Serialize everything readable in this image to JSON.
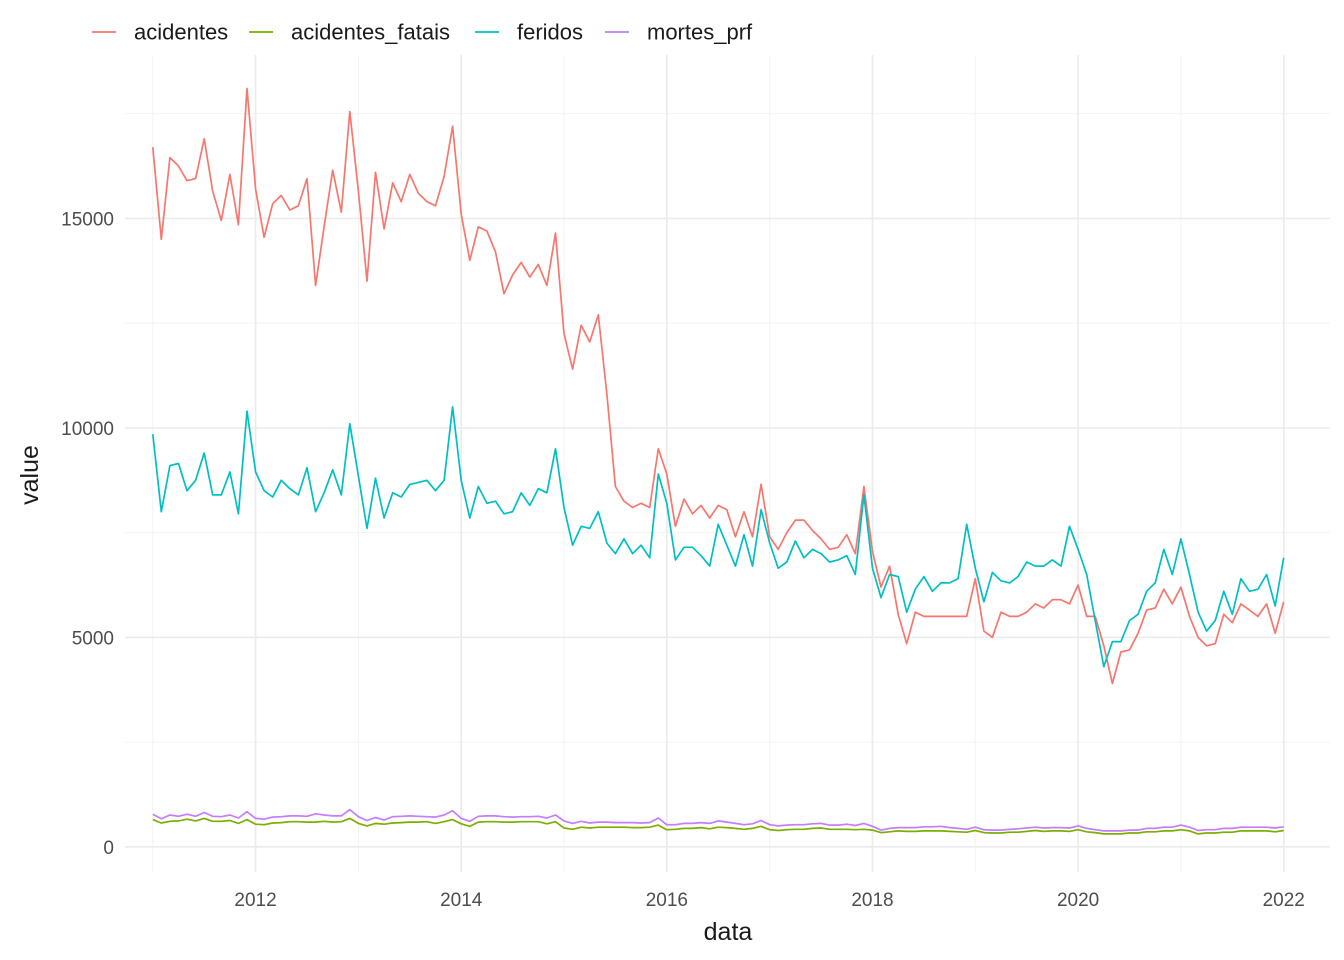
{
  "chart_data": {
    "type": "line",
    "xlabel": "data",
    "ylabel": "value",
    "x_tick_labels": [
      "2012",
      "2014",
      "2016",
      "2018",
      "2020",
      "2022"
    ],
    "y_tick_labels": [
      "0",
      "5000",
      "10000",
      "15000"
    ],
    "x_range_years": [
      2010.73,
      2022.45
    ],
    "ylim": [
      -600,
      18900
    ],
    "legend_position": "top-left",
    "grid": true,
    "start": "2011-01",
    "frequency": "monthly",
    "series": [
      {
        "name": "acidentes",
        "color": "#F8766D",
        "values": [
          16700,
          14500,
          16450,
          16250,
          15900,
          15950,
          16900,
          15650,
          14950,
          16050,
          14850,
          18100,
          15700,
          14550,
          15350,
          15550,
          15200,
          15300,
          15950,
          13400,
          14800,
          16150,
          15150,
          17550,
          15650,
          13500,
          16100,
          14750,
          15850,
          15400,
          16050,
          15600,
          15400,
          15300,
          16000,
          17200,
          15100,
          14000,
          14800,
          14700,
          14200,
          13200,
          13650,
          13950,
          13600,
          13900,
          13400,
          14650,
          12250,
          11400,
          12450,
          12050,
          12700,
          10800,
          8600,
          8250,
          8100,
          8200,
          8100,
          9500,
          8900,
          7650,
          8300,
          7950,
          8150,
          7850,
          8150,
          8050,
          7400,
          8000,
          7400,
          8650,
          7400,
          7100,
          7500,
          7800,
          7800,
          7550,
          7350,
          7100,
          7150,
          7450,
          7000,
          8600,
          7050,
          6200,
          6700,
          5550,
          4850,
          5600,
          5500,
          5500,
          5500,
          5500,
          5500,
          5500,
          6400,
          5150,
          5000,
          5600,
          5500,
          5500,
          5600,
          5800,
          5700,
          5900,
          5900,
          5800,
          6250,
          5500,
          5500,
          4800,
          3900,
          4650,
          4700,
          5100,
          5650,
          5700,
          6150,
          5800,
          6200,
          5500,
          5000,
          4800,
          4850,
          5550,
          5350,
          5800,
          5650,
          5500,
          5800,
          5100,
          5850
        ]
      },
      {
        "name": "acidentes_fatais",
        "color": "#7CAE00",
        "values": [
          650,
          570,
          610,
          620,
          660,
          620,
          680,
          610,
          610,
          630,
          560,
          650,
          540,
          530,
          570,
          580,
          600,
          600,
          590,
          590,
          610,
          590,
          600,
          680,
          560,
          500,
          560,
          540,
          570,
          580,
          590,
          590,
          600,
          560,
          600,
          650,
          550,
          490,
          590,
          600,
          600,
          590,
          590,
          600,
          600,
          600,
          550,
          600,
          450,
          420,
          470,
          450,
          470,
          470,
          470,
          470,
          460,
          460,
          470,
          520,
          410,
          420,
          440,
          440,
          460,
          430,
          470,
          460,
          440,
          420,
          440,
          490,
          410,
          390,
          410,
          420,
          420,
          440,
          450,
          420,
          420,
          420,
          410,
          420,
          400,
          340,
          360,
          380,
          370,
          370,
          380,
          380,
          380,
          370,
          360,
          350,
          390,
          340,
          330,
          330,
          350,
          350,
          370,
          390,
          370,
          380,
          380,
          370,
          410,
          360,
          340,
          310,
          310,
          310,
          330,
          330,
          360,
          360,
          380,
          380,
          410,
          380,
          310,
          330,
          330,
          350,
          350,
          380,
          380,
          380,
          380,
          360,
          390
        ]
      },
      {
        "name": "feridos",
        "color": "#00BFC4",
        "values": [
          9850,
          8000,
          9100,
          9150,
          8500,
          8750,
          9400,
          8400,
          8400,
          8950,
          7950,
          10400,
          8950,
          8500,
          8350,
          8750,
          8550,
          8400,
          9050,
          8000,
          8450,
          9000,
          8400,
          10100,
          8850,
          7600,
          8800,
          7850,
          8450,
          8350,
          8650,
          8700,
          8750,
          8500,
          8750,
          10500,
          8750,
          7850,
          8600,
          8200,
          8250,
          7950,
          8000,
          8450,
          8150,
          8550,
          8450,
          9500,
          8100,
          7200,
          7650,
          7600,
          8000,
          7250,
          7000,
          7350,
          7000,
          7200,
          6900,
          8900,
          8200,
          6850,
          7150,
          7150,
          6950,
          6700,
          7700,
          7200,
          6700,
          7450,
          6700,
          8050,
          7250,
          6650,
          6800,
          7300,
          6900,
          7100,
          7000,
          6800,
          6850,
          6950,
          6500,
          8400,
          6650,
          5950,
          6500,
          6450,
          5600,
          6150,
          6450,
          6100,
          6300,
          6300,
          6400,
          7700,
          6650,
          5850,
          6550,
          6350,
          6300,
          6450,
          6800,
          6700,
          6700,
          6850,
          6700,
          7650,
          7100,
          6500,
          5400,
          4300,
          4900,
          4900,
          5400,
          5550,
          6100,
          6300,
          7100,
          6500,
          7350,
          6500,
          5600,
          5150,
          5400,
          6100,
          5550,
          6400,
          6100,
          6150,
          6500,
          5750,
          6900
        ]
      },
      {
        "name": "mortes_prf",
        "color": "#C77CFF",
        "values": [
          780,
          670,
          760,
          730,
          780,
          730,
          820,
          730,
          720,
          760,
          690,
          840,
          680,
          660,
          710,
          720,
          740,
          740,
          730,
          790,
          760,
          740,
          740,
          890,
          720,
          630,
          700,
          640,
          720,
          730,
          740,
          730,
          720,
          710,
          760,
          860,
          680,
          610,
          730,
          740,
          740,
          720,
          710,
          720,
          720,
          730,
          690,
          760,
          620,
          560,
          610,
          570,
          590,
          590,
          580,
          580,
          580,
          570,
          580,
          690,
          530,
          530,
          560,
          560,
          580,
          560,
          620,
          590,
          560,
          530,
          550,
          630,
          530,
          500,
          520,
          530,
          530,
          550,
          560,
          520,
          520,
          540,
          510,
          560,
          490,
          400,
          440,
          460,
          460,
          460,
          480,
          480,
          490,
          460,
          440,
          420,
          470,
          410,
          400,
          400,
          420,
          430,
          450,
          470,
          450,
          460,
          460,
          450,
          500,
          440,
          410,
          380,
          380,
          380,
          400,
          400,
          440,
          440,
          470,
          470,
          520,
          470,
          390,
          410,
          410,
          440,
          440,
          470,
          470,
          470,
          470,
          450,
          480
        ]
      }
    ]
  }
}
